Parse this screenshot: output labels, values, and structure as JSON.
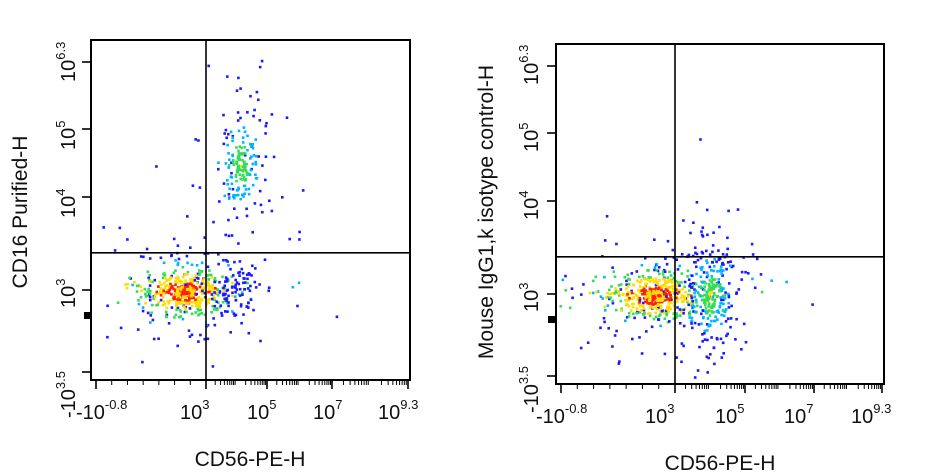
{
  "chart_data": [
    {
      "type": "scatter",
      "subtype": "flow-cytometry density dot plot",
      "xlabel": "CD56-PE-H",
      "ylabel": "CD16 Purified-H",
      "x_scale": "biexponential",
      "y_scale": "biexponential",
      "x_tick_labels": [
        {
          "base": "-10",
          "exp": "-0.8"
        },
        {
          "base": "10",
          "exp": "3"
        },
        {
          "base": "10",
          "exp": "5"
        },
        {
          "base": "10",
          "exp": "7"
        },
        {
          "base": "10",
          "exp": "9.3"
        }
      ],
      "y_tick_labels": [
        {
          "base": "-10",
          "exp": "3.5"
        },
        {
          "base": "10",
          "exp": "3"
        },
        {
          "base": "10",
          "exp": "4"
        },
        {
          "base": "10",
          "exp": "5"
        },
        {
          "base": "10",
          "exp": "6.3"
        }
      ],
      "quadrant_gate": {
        "x": 3.0,
        "y": 3.4
      },
      "populations": [
        {
          "x": 2.2,
          "y": 2.95,
          "count": 380,
          "peak": "red"
        },
        {
          "x": 4.1,
          "y": 4.5,
          "count": 140,
          "peak": "green"
        },
        {
          "x": 3.8,
          "y": 3.0,
          "count": 70,
          "peak": "blue"
        }
      ],
      "grid": false
    },
    {
      "type": "scatter",
      "subtype": "flow-cytometry density dot plot",
      "xlabel": "CD56-PE-H",
      "ylabel": "Mouse IgG1,k isotype control-H",
      "x_scale": "biexponential",
      "y_scale": "biexponential",
      "x_tick_labels": [
        {
          "base": "-10",
          "exp": "-0.8"
        },
        {
          "base": "10",
          "exp": "3"
        },
        {
          "base": "10",
          "exp": "5"
        },
        {
          "base": "10",
          "exp": "7"
        },
        {
          "base": "10",
          "exp": "9.3"
        }
      ],
      "y_tick_labels": [
        {
          "base": "-10",
          "exp": "3.5"
        },
        {
          "base": "10",
          "exp": "3"
        },
        {
          "base": "10",
          "exp": "4"
        },
        {
          "base": "10",
          "exp": "5"
        },
        {
          "base": "10",
          "exp": "6.3"
        }
      ],
      "quadrant_gate": {
        "x": 3.0,
        "y": 3.4
      },
      "populations": [
        {
          "x": 2.3,
          "y": 2.95,
          "count": 420,
          "peak": "red"
        },
        {
          "x": 4.0,
          "y": 2.95,
          "count": 220,
          "peak": "green"
        }
      ],
      "grid": false
    }
  ],
  "colors": {
    "low": "#1a1aff",
    "mid_low": "#00b4ff",
    "mid": "#33dd55",
    "mid_high": "#ffdd00",
    "high": "#ff2200",
    "axis": "#000000"
  }
}
